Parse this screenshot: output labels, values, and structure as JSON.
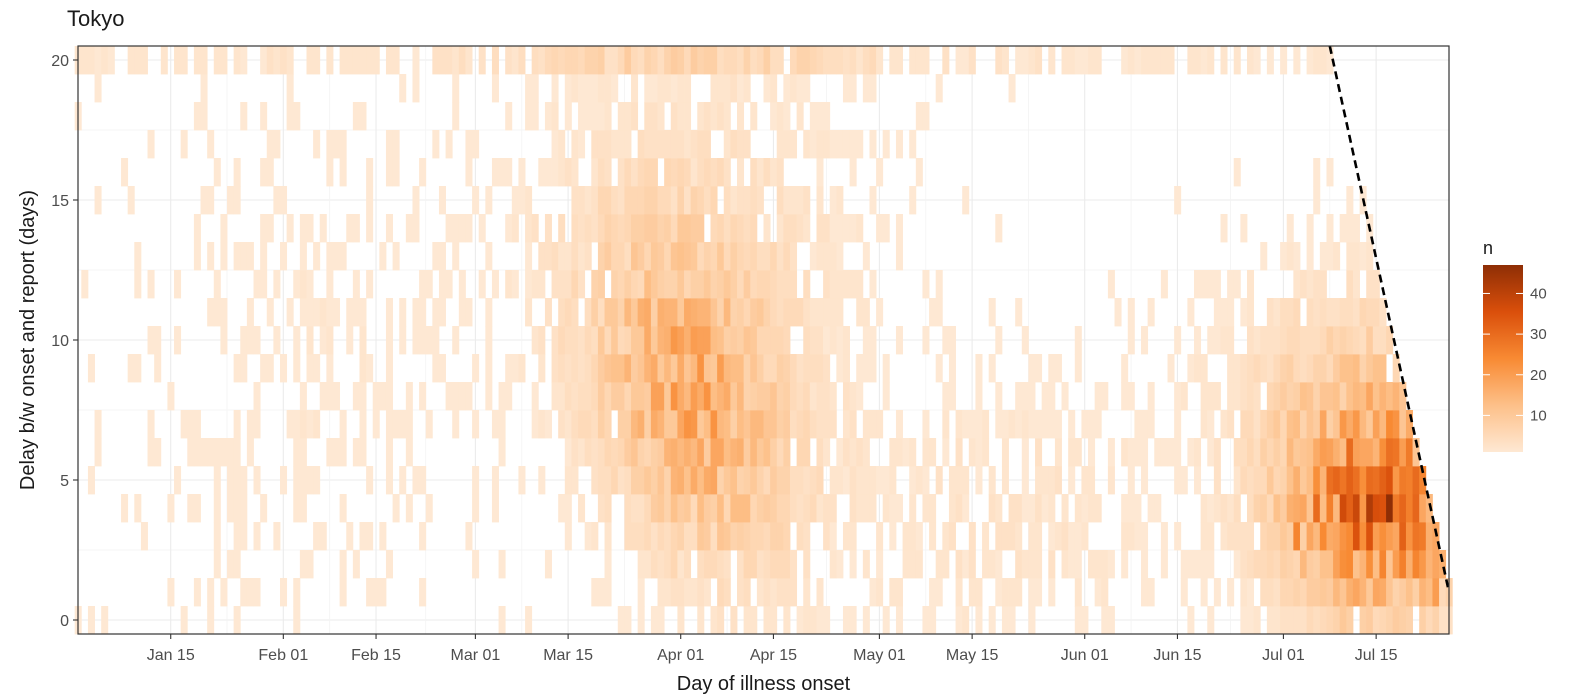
{
  "chart_data": {
    "type": "heatmap",
    "title": "Tokyo",
    "xlabel": "Day of illness onset",
    "ylabel": "Delay b/w onset and report (days)",
    "x_ticks": [
      "Jan 15",
      "Feb 01",
      "Feb 15",
      "Mar 01",
      "Mar 15",
      "Apr 01",
      "Apr 15",
      "May 01",
      "May 15",
      "Jun 01",
      "Jun 15",
      "Jul 01",
      "Jul 15"
    ],
    "x_tick_dates": [
      "2020-01-15",
      "2020-02-01",
      "2020-02-15",
      "2020-03-01",
      "2020-03-15",
      "2020-04-01",
      "2020-04-15",
      "2020-05-01",
      "2020-05-15",
      "2020-06-01",
      "2020-06-15",
      "2020-07-01",
      "2020-07-15"
    ],
    "xlim": [
      "2020-01-01",
      "2020-07-26"
    ],
    "ylim": [
      -0.5,
      20.5
    ],
    "y_ticks": [
      0,
      5,
      10,
      15,
      20
    ],
    "grid": true,
    "legend": {
      "title": "n",
      "position": "right",
      "range": [
        1,
        47
      ],
      "ticks": [
        10,
        20,
        30,
        40
      ],
      "colors": [
        "#fee8d3",
        "#fdc089",
        "#f88a33",
        "#da4f0b",
        "#8e2e05"
      ]
    },
    "reference_line": {
      "style": "dashed",
      "color": "#000000",
      "from": {
        "x": "2020-07-08",
        "y": 20.5
      },
      "to": {
        "x": "2020-07-26",
        "y": 1
      }
    },
    "key_cells": [
      {
        "x": "2020-03-31",
        "y": 11,
        "n": 15
      },
      {
        "x": "2020-04-02",
        "y": 7,
        "n": 22
      },
      {
        "x": "2020-04-04",
        "y": 6,
        "n": 18
      },
      {
        "x": "2020-04-08",
        "y": 9,
        "n": 14
      },
      {
        "x": "2020-07-03",
        "y": 3,
        "n": 25
      },
      {
        "x": "2020-07-06",
        "y": 4,
        "n": 30
      },
      {
        "x": "2020-07-10",
        "y": 5,
        "n": 28
      },
      {
        "x": "2020-07-14",
        "y": 3,
        "n": 35
      },
      {
        "x": "2020-07-17",
        "y": 4,
        "n": 47
      },
      {
        "x": "2020-07-21",
        "y": 2,
        "n": 25
      },
      {
        "x": "2020-07-24",
        "y": 1,
        "n": 20
      }
    ]
  }
}
